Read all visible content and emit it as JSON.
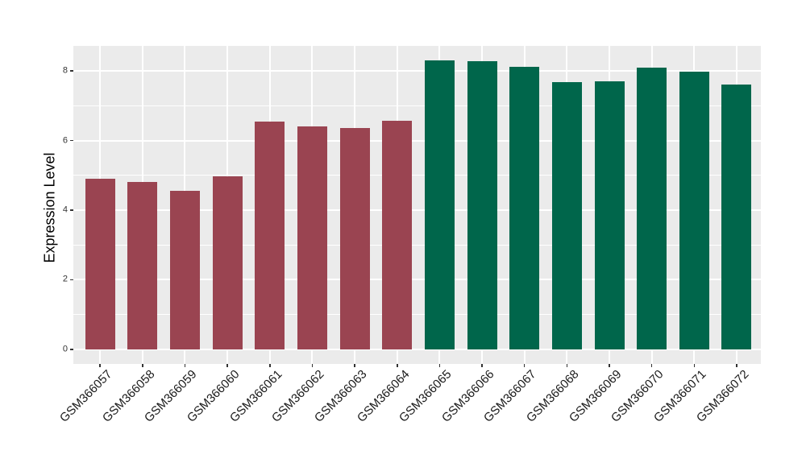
{
  "chart_data": {
    "type": "bar",
    "title": "",
    "xlabel": "",
    "ylabel": "Expression Level",
    "categories": [
      "GSM366057",
      "GSM366058",
      "GSM366059",
      "GSM366060",
      "GSM366061",
      "GSM366062",
      "GSM366063",
      "GSM366064",
      "GSM366065",
      "GSM366066",
      "GSM366067",
      "GSM366068",
      "GSM366069",
      "GSM366070",
      "GSM366071",
      "GSM366072"
    ],
    "values": [
      4.9,
      4.82,
      4.56,
      4.96,
      6.55,
      6.41,
      6.37,
      6.56,
      8.3,
      8.29,
      8.12,
      7.67,
      7.7,
      8.09,
      7.98,
      7.62
    ],
    "bar_colors": [
      "#9A4451",
      "#9A4451",
      "#9A4451",
      "#9A4451",
      "#9A4451",
      "#9A4451",
      "#9A4451",
      "#9A4451",
      "#00664B",
      "#00664B",
      "#00664B",
      "#00664B",
      "#00664B",
      "#00664B",
      "#00664B",
      "#00664B"
    ],
    "yticks": [
      0,
      2,
      4,
      6,
      8
    ],
    "yticks_minor": [
      1,
      3,
      5,
      7
    ],
    "ylim": [
      -0.42,
      8.72
    ],
    "grid": "major-and-minor-horizontal, major-vertical",
    "legend": "none",
    "panel_background": "#EBEBEB",
    "gridline_color": "#FFFFFF"
  }
}
